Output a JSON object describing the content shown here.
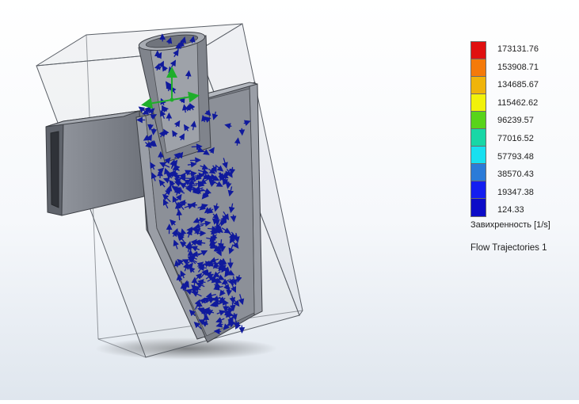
{
  "legend": {
    "colors": [
      "#e01010",
      "#f47a0a",
      "#f0b40a",
      "#f2f20a",
      "#58d41a",
      "#18d7a6",
      "#18e0f0",
      "#2b7bd8",
      "#141ef0",
      "#0c0cc8"
    ],
    "ticks": [
      "173131.76",
      "153908.71",
      "134685.67",
      "115462.62",
      "96239.57",
      "77016.52",
      "57793.48",
      "38570.43",
      "19347.38",
      "124.33"
    ],
    "caption": "Завихренность [1/s]"
  },
  "plot": {
    "name": "Flow Trajectories 1",
    "vector_color": "#101a9c",
    "axis_color": "#1fae2a"
  }
}
